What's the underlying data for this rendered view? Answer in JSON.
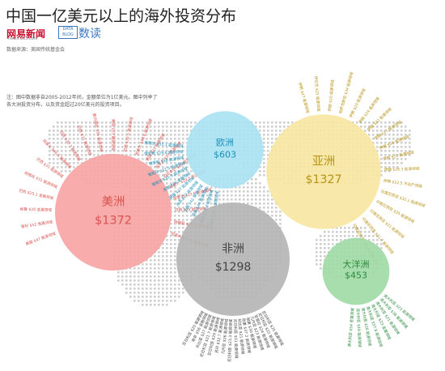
{
  "header": {
    "title": "中国一亿美元以上的海外投资分布",
    "source": "数据来源：美国传统基金会",
    "logo_netease": "网易新闻",
    "logo_url": "news.163.com",
    "logo_databox": "DATA BLOG",
    "logo_shudu": "数读"
  },
  "note": "注：图中数据非自2005-2012年间，金额单位为1亿美元。图中列举了各大洲投资分布，以及资金超过20亿美元的投资项目。",
  "chart_data": {
    "type": "bubble",
    "unit": "亿美元",
    "regions": [
      {
        "name": "美洲",
        "label": "$1372",
        "value": 1372,
        "color": "#f7a3a3",
        "text_color": "#d9534f",
        "projects": [
          "美国 $47 能源领域",
          "智利 $52 金属领域",
          "秘鲁 $20 金属领域",
          "巴西 $25.1 金属领域",
          "阿根廷 $31 能源领域",
          "巴西 $31 能源领域",
          "加拿大 $46.5 能源领域",
          "巴西 $30.7 能源领域",
          "巴西 $71 能源领域",
          "委内瑞拉 $35 能源领域",
          "美国 $23 能源领域",
          "巴西 $32.5 能源领域",
          "加拿大 $48.6 能源领域",
          "美国 $21 能源领域",
          "加拿大 $17 能源领域",
          "厄瓜多尔 $21 能源领域",
          "加拿大 $29.5 能源领域",
          "加拿大 $23.6 能源领域",
          "巴西 $24 能源领域",
          "阿根廷 $25 能源领域",
          "加拿大 $31.5 能源领域"
        ]
      },
      {
        "name": "欧洲",
        "label": "$603",
        "value": 603,
        "color": "#a8e2f2",
        "text_color": "#1f8fb8",
        "projects": [
          "比利时 $24.3 金融领域",
          "英国 $33.4 能源领域",
          "英国 $44 能源领域",
          "法国 $42 能源领域",
          "冰岛 $22 能源领域",
          "英国 $27 能源领域",
          "英国 $28 金融领域",
          "葡萄牙 $35.9 能源领域",
          "葡萄牙 $32.5 能源领域",
          "俄罗斯 $38 能源领域",
          "俄罗斯 $29.6 能源领域",
          "葡萄牙 $33.1 能源领域"
        ]
      },
      {
        "name": "亚洲",
        "label": "$1327",
        "value": 1327,
        "color": "#f7e7a1",
        "text_color": "#b89316",
        "projects": [
          "伊朗 $47 能源领域",
          "伊拉克 $25 能源领域",
          "伊朗 $20 能源领域",
          "哈萨克斯坦 $34 能源领域",
          "伊朗 $29 能源领域",
          "伊朗 $24 能源领域",
          "伊朗 $32 能源领域",
          "伊朗 $17 能源领域",
          "伊朗 $28 能源领域",
          "伊朗 $25 能源领域",
          "伊朗 $26.3 能源领域",
          "伊朗 $22.5 不动产领域",
          "印度尼西亚 $32.2 能源领域",
          "印度尼西亚 $35 能源领域",
          "印度尼西亚 $21 能源领域",
          "印度尼西亚 $21.7 能源领域",
          "印度尼西亚 $59.9 金属领域"
        ]
      },
      {
        "name": "非洲",
        "label": "$1298",
        "value": 1298,
        "color": "#b4b4b4",
        "text_color": "#444444",
        "projects": [
          "尼日利亚 $25 能源领域",
          "尼日利亚 $22 能源领域",
          "安哥拉 $24 能源领域",
          "几内亚 $23 能源领域",
          "刚果 $30 能源领域",
          "刚果 $37.2 能源领域",
          "利比亚 $21 能源领域",
          "尼日利亚 $31 能源领域",
          "尼日利亚 $23.3 能源领域",
          "几内亚 $26 能源领域",
          "苏丹 $32.7 能源领域",
          "尼日利亚 $29 能源领域",
          "尼日利亚 $21.7 能源领域",
          "利比亚 $27 能源领域",
          "南非 $56 金融领域",
          "尼日利亚 $20 能源领域"
        ]
      },
      {
        "name": "大洋洲",
        "label": "$453",
        "value": 453,
        "color": "#9ed9a5",
        "text_color": "#2d8a3e",
        "projects": [
          "澳大利亚 $23 能源领域",
          "澳大利亚 $38 能源领域",
          "澳大利亚 $21 能源领域",
          "澳大利亚 $23 金属领域",
          "澳大利亚 $37.8 能源领域",
          "澳大利亚 $26 能源领域",
          "澳大利亚 $19 能源领域",
          "澳大利亚 $54 金属领域"
        ]
      }
    ]
  }
}
